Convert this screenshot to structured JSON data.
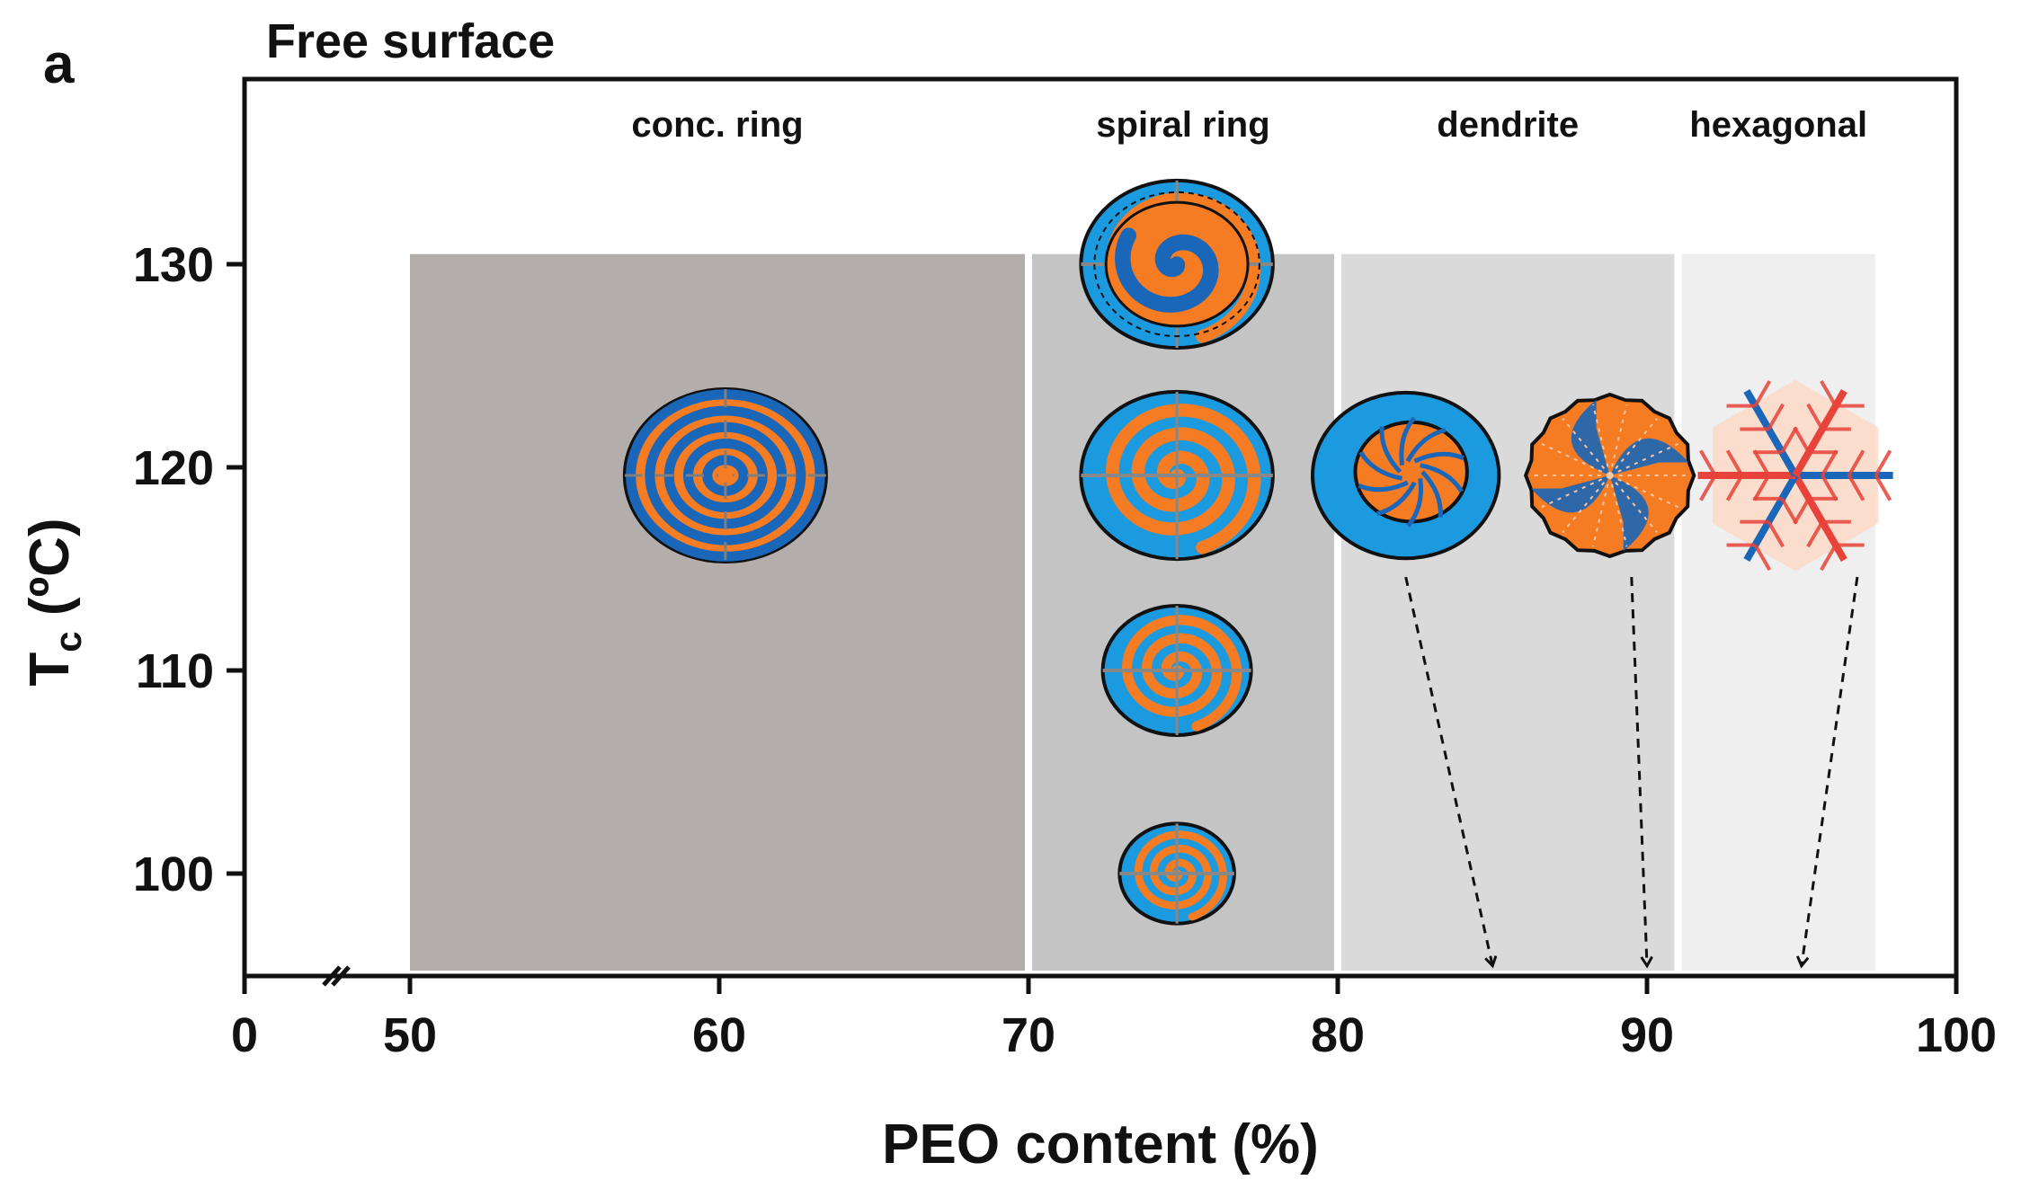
{
  "panel_label": "a",
  "chart_data": {
    "type": "scatter",
    "title": "Free surface",
    "xlabel": "PEO content (%)",
    "ylabel_main": "T",
    "ylabel_sub": "c",
    "ylabel_unit": " (ºC)",
    "xlim": [
      0,
      100
    ],
    "ylim": [
      95,
      135.5
    ],
    "x_axis_break": {
      "between": [
        0,
        50
      ],
      "symbol": "≈"
    },
    "x_ticks": [
      0,
      50,
      60,
      70,
      80,
      90,
      100
    ],
    "x_tick_labels": [
      "0",
      "50",
      "60",
      "70",
      "80",
      "90",
      "100"
    ],
    "y_ticks": [
      100,
      110,
      120,
      130
    ],
    "y_tick_labels": [
      "100",
      "110",
      "120",
      "130"
    ],
    "grid": false,
    "regions": [
      {
        "name": "conc. ring",
        "x_start": 50,
        "x_end": 70,
        "y_top": 130.5,
        "color": "#b3adab"
      },
      {
        "name": "spiral ring",
        "x_start": 70,
        "x_end": 80,
        "y_top": 130.5,
        "color": "#c4c4c4"
      },
      {
        "name": "dendrite",
        "x_start": 80,
        "x_end": 91,
        "y_top": 130.5,
        "color": "#dadada"
      },
      {
        "name": "hexagonal",
        "x_start": 91,
        "x_end": 97.5,
        "y_top": 130.5,
        "color": "#efefef"
      }
    ],
    "morphologies": [
      {
        "x": 60.2,
        "y": 119.6,
        "kind": "concentric-ring",
        "size": 1.0
      },
      {
        "x": 74.8,
        "y": 130.0,
        "kind": "spiral-ring-rough",
        "size": 0.97
      },
      {
        "x": 74.8,
        "y": 119.6,
        "kind": "spiral-ring",
        "size": 0.97
      },
      {
        "x": 74.8,
        "y": 110.0,
        "kind": "spiral-ring",
        "size": 0.75
      },
      {
        "x": 74.8,
        "y": 100.0,
        "kind": "spiral-ring",
        "size": 0.58
      },
      {
        "x": 82.2,
        "y": 119.6,
        "kind": "dendrite-ring",
        "size": 0.96
      },
      {
        "x": 88.8,
        "y": 119.6,
        "kind": "dendrite",
        "size": 0.9
      },
      {
        "x": 94.8,
        "y": 119.6,
        "kind": "hexagonal",
        "size": 0.95
      }
    ],
    "arrows": [
      {
        "from": [
          82.2,
          114.6
        ],
        "to": [
          85.0,
          95.5
        ]
      },
      {
        "from": [
          89.5,
          114.6
        ],
        "to": [
          90.0,
          95.5
        ]
      },
      {
        "from": [
          96.8,
          114.6
        ],
        "to": [
          95.0,
          95.5
        ]
      }
    ],
    "colors": {
      "orange": "#f57c22",
      "blue": "#1b9ae0",
      "dark_blue": "#1a66b8",
      "red": "#e8433a"
    }
  }
}
